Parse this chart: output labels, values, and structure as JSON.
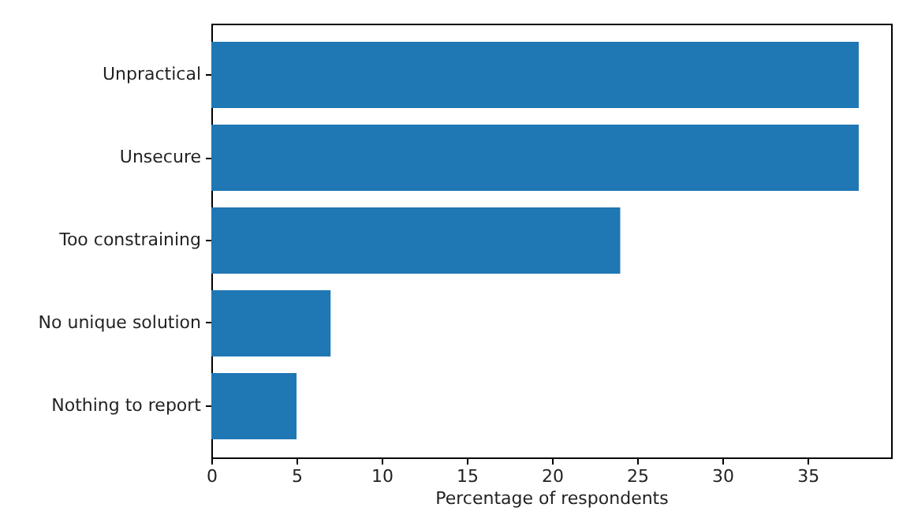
{
  "chart_data": {
    "type": "bar",
    "orientation": "horizontal",
    "xlabel": "Percentage of respondents",
    "categories": [
      "Unpractical",
      "Unsecure",
      "Too constraining",
      "No unique solution",
      "Nothing to report"
    ],
    "values": [
      38,
      38,
      24,
      7,
      5
    ],
    "color": "#1f77b4",
    "xlim": [
      0,
      39.9
    ],
    "xticks": [
      0,
      5,
      10,
      15,
      20,
      25,
      30,
      35
    ],
    "grid": false
  }
}
